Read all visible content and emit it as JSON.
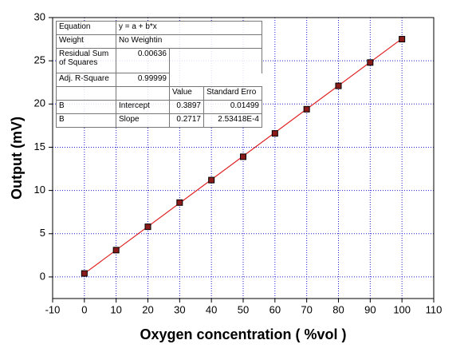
{
  "chart_data": {
    "type": "scatter",
    "xlabel": "Oxygen concentration ( %vol )",
    "ylabel": "Output (mV)",
    "x": [
      0,
      10,
      20,
      30,
      40,
      50,
      60,
      70,
      80,
      90,
      100
    ],
    "values": [
      0.4,
      3.1,
      5.8,
      8.6,
      11.2,
      13.9,
      16.6,
      19.4,
      22.1,
      24.8,
      27.5
    ],
    "color": "#8b1a1a",
    "fit_color": "#e02020",
    "xlim": [
      -10,
      110
    ],
    "xticks": [
      -10,
      0,
      10,
      20,
      30,
      40,
      50,
      60,
      70,
      80,
      90,
      100,
      110
    ],
    "ylim": [
      -2.5,
      30
    ],
    "yticks": [
      0,
      5,
      10,
      15,
      20,
      25,
      30
    ],
    "grid": true,
    "fit_table": {
      "equation": {
        "label": "Equation",
        "value": "y = a + b*x"
      },
      "weight": {
        "label": "Weight",
        "value": "No Weightin"
      },
      "rss": {
        "label": "Residual Sum of Squares",
        "value": 0.00636
      },
      "adj_r2": {
        "label": "Adj. R-Square",
        "value": 0.99999
      },
      "columns": [
        "Value",
        "Standard Erro"
      ],
      "params": [
        {
          "group": "B",
          "name": "Intercept",
          "value": 0.3897,
          "error": 0.01499
        },
        {
          "group": "B",
          "name": "Slope",
          "value": 0.2717,
          "error": "2.53418E-4"
        }
      ]
    }
  }
}
